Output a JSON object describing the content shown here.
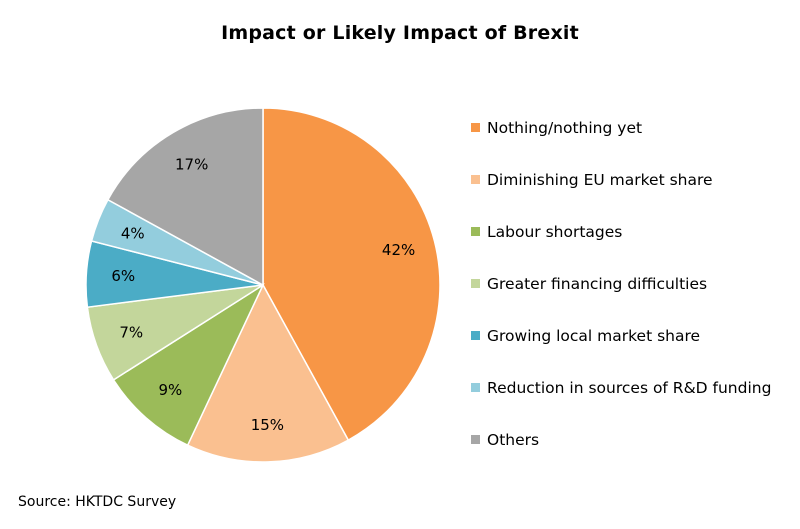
{
  "title": "Impact or Likely Impact of Brexit",
  "source": "Source: HKTDC Survey",
  "chart_data": {
    "type": "pie",
    "title": "Impact or Likely Impact of Brexit",
    "legend_position": "right",
    "slices": [
      {
        "label": "Nothing/nothing yet",
        "value": 42,
        "display": "42%",
        "color": "#F79646"
      },
      {
        "label": "Diminishing EU market share",
        "value": 15,
        "display": "15%",
        "color": "#FAC090"
      },
      {
        "label": "Labour shortages",
        "value": 9,
        "display": "9%",
        "color": "#9BBB59"
      },
      {
        "label": "Greater financing difficulties",
        "value": 7,
        "display": "7%",
        "color": "#C3D69B"
      },
      {
        "label": "Growing local market share",
        "value": 6,
        "display": "6%",
        "color": "#4BACC6"
      },
      {
        "label": "Reduction in sources of R&D funding",
        "value": 4,
        "display": "4%",
        "color": "#93CDDD"
      },
      {
        "label": "Others",
        "value": 17,
        "display": "17%",
        "color": "#A6A6A6"
      }
    ]
  }
}
